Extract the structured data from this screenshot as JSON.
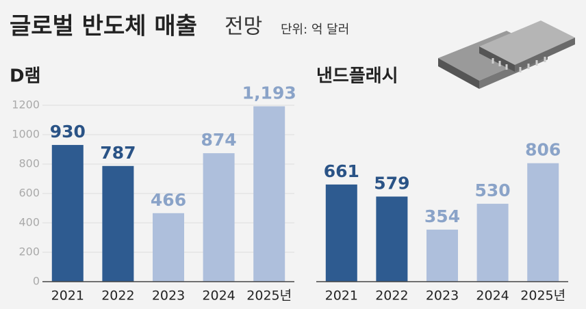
{
  "header": {
    "title": "글로벌 반도체 매출",
    "title_suffix": "전망",
    "unit": "단위: 억 달러"
  },
  "chart_data": [
    {
      "type": "bar",
      "title": "D램",
      "categories": [
        "2021",
        "2022",
        "2023",
        "2024",
        "2025년"
      ],
      "values": [
        930,
        787,
        466,
        874,
        1193
      ],
      "value_labels": [
        "930",
        "787",
        "466",
        "874",
        "1,193"
      ],
      "colors": [
        "#2e5b90",
        "#2e5b90",
        "#aebfdc",
        "#aebfdc",
        "#aebfdc"
      ],
      "label_colors": [
        "#2a5386",
        "#2a5386",
        "#8aa3c8",
        "#8aa3c8",
        "#8aa3c8"
      ],
      "ylim": [
        0,
        1200
      ],
      "yticks": [
        0,
        200,
        400,
        600,
        800,
        1000,
        1200
      ],
      "grid": true
    },
    {
      "type": "bar",
      "title": "낸드플래시",
      "categories": [
        "2021",
        "2022",
        "2023",
        "2024",
        "2025년"
      ],
      "values": [
        661,
        579,
        354,
        530,
        806
      ],
      "colors": [
        "#2e5b90",
        "#2e5b90",
        "#aebfdc",
        "#aebfdc",
        "#aebfdc"
      ],
      "label_colors": [
        "#2a5386",
        "#2a5386",
        "#8aa3c8",
        "#8aa3c8",
        "#8aa3c8"
      ],
      "ylim": [
        0,
        1200
      ],
      "yticks": [],
      "grid": false
    }
  ]
}
